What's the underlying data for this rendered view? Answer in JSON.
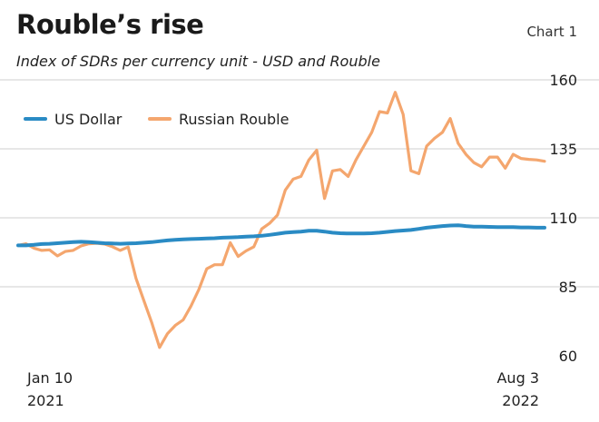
{
  "header": {
    "title": "Rouble’s rise",
    "chart_label": "Chart 1",
    "subtitle": "Index of SDRs per currency unit - USD and Rouble"
  },
  "colors": {
    "usd": "#2a8bc4",
    "rouble": "#f4a66e",
    "grid": "#cfcfcf"
  },
  "chart_data": {
    "type": "line",
    "title": "Rouble’s rise",
    "subtitle": "Index of SDRs per currency unit - USD and Rouble",
    "ylim": [
      60,
      160
    ],
    "yticks": [
      60,
      85,
      110,
      135,
      160
    ],
    "x_labels": [
      {
        "line1": "Jan 10",
        "line2": "2021",
        "pos": 0
      },
      {
        "line1": "Aug 3",
        "line2": "2022",
        "pos": 1
      }
    ],
    "grid": true,
    "legend": "top-left",
    "series": [
      {
        "name": "US Dollar",
        "color": "#2a8bc4",
        "values": [
          100,
          100,
          100.2,
          100.5,
          100.6,
          100.8,
          101,
          101.2,
          101.3,
          101.2,
          101,
          100.8,
          100.7,
          100.6,
          100.7,
          100.8,
          101,
          101.2,
          101.5,
          101.8,
          102,
          102.2,
          102.3,
          102.4,
          102.5,
          102.6,
          102.8,
          102.9,
          103,
          103.2,
          103.3,
          103.5,
          103.8,
          104.2,
          104.6,
          104.8,
          105,
          105.3,
          105.3,
          105,
          104.6,
          104.4,
          104.3,
          104.3,
          104.3,
          104.4,
          104.6,
          104.9,
          105.2,
          105.4,
          105.6,
          106,
          106.4,
          106.7,
          107,
          107.2,
          107.3,
          107,
          106.8,
          106.8,
          106.7,
          106.6,
          106.6,
          106.6,
          106.5,
          106.5,
          106.4,
          106.4
        ]
      },
      {
        "name": "Russian Rouble",
        "color": "#f4a66e",
        "values": [
          100,
          100.6,
          99,
          98.2,
          98.4,
          96.2,
          97.8,
          98.2,
          99.8,
          100.6,
          100.8,
          100.5,
          99.5,
          98.2,
          99.4,
          88,
          80,
          72,
          63,
          68,
          71,
          73,
          78,
          84,
          91.5,
          93,
          93,
          101,
          96,
          98,
          99.5,
          106,
          108,
          111,
          120,
          124,
          125,
          131,
          134.5,
          117,
          127,
          127.5,
          125,
          131,
          136,
          141,
          148.5,
          148,
          155.5,
          147.5,
          127,
          126,
          136,
          138.8,
          141,
          146,
          137,
          133,
          130,
          128.5,
          132,
          132,
          128,
          133,
          131.5,
          131.2,
          131,
          130.5
        ]
      }
    ]
  },
  "legend": {
    "usd_label": "US Dollar",
    "rouble_label": "Russian Rouble"
  }
}
